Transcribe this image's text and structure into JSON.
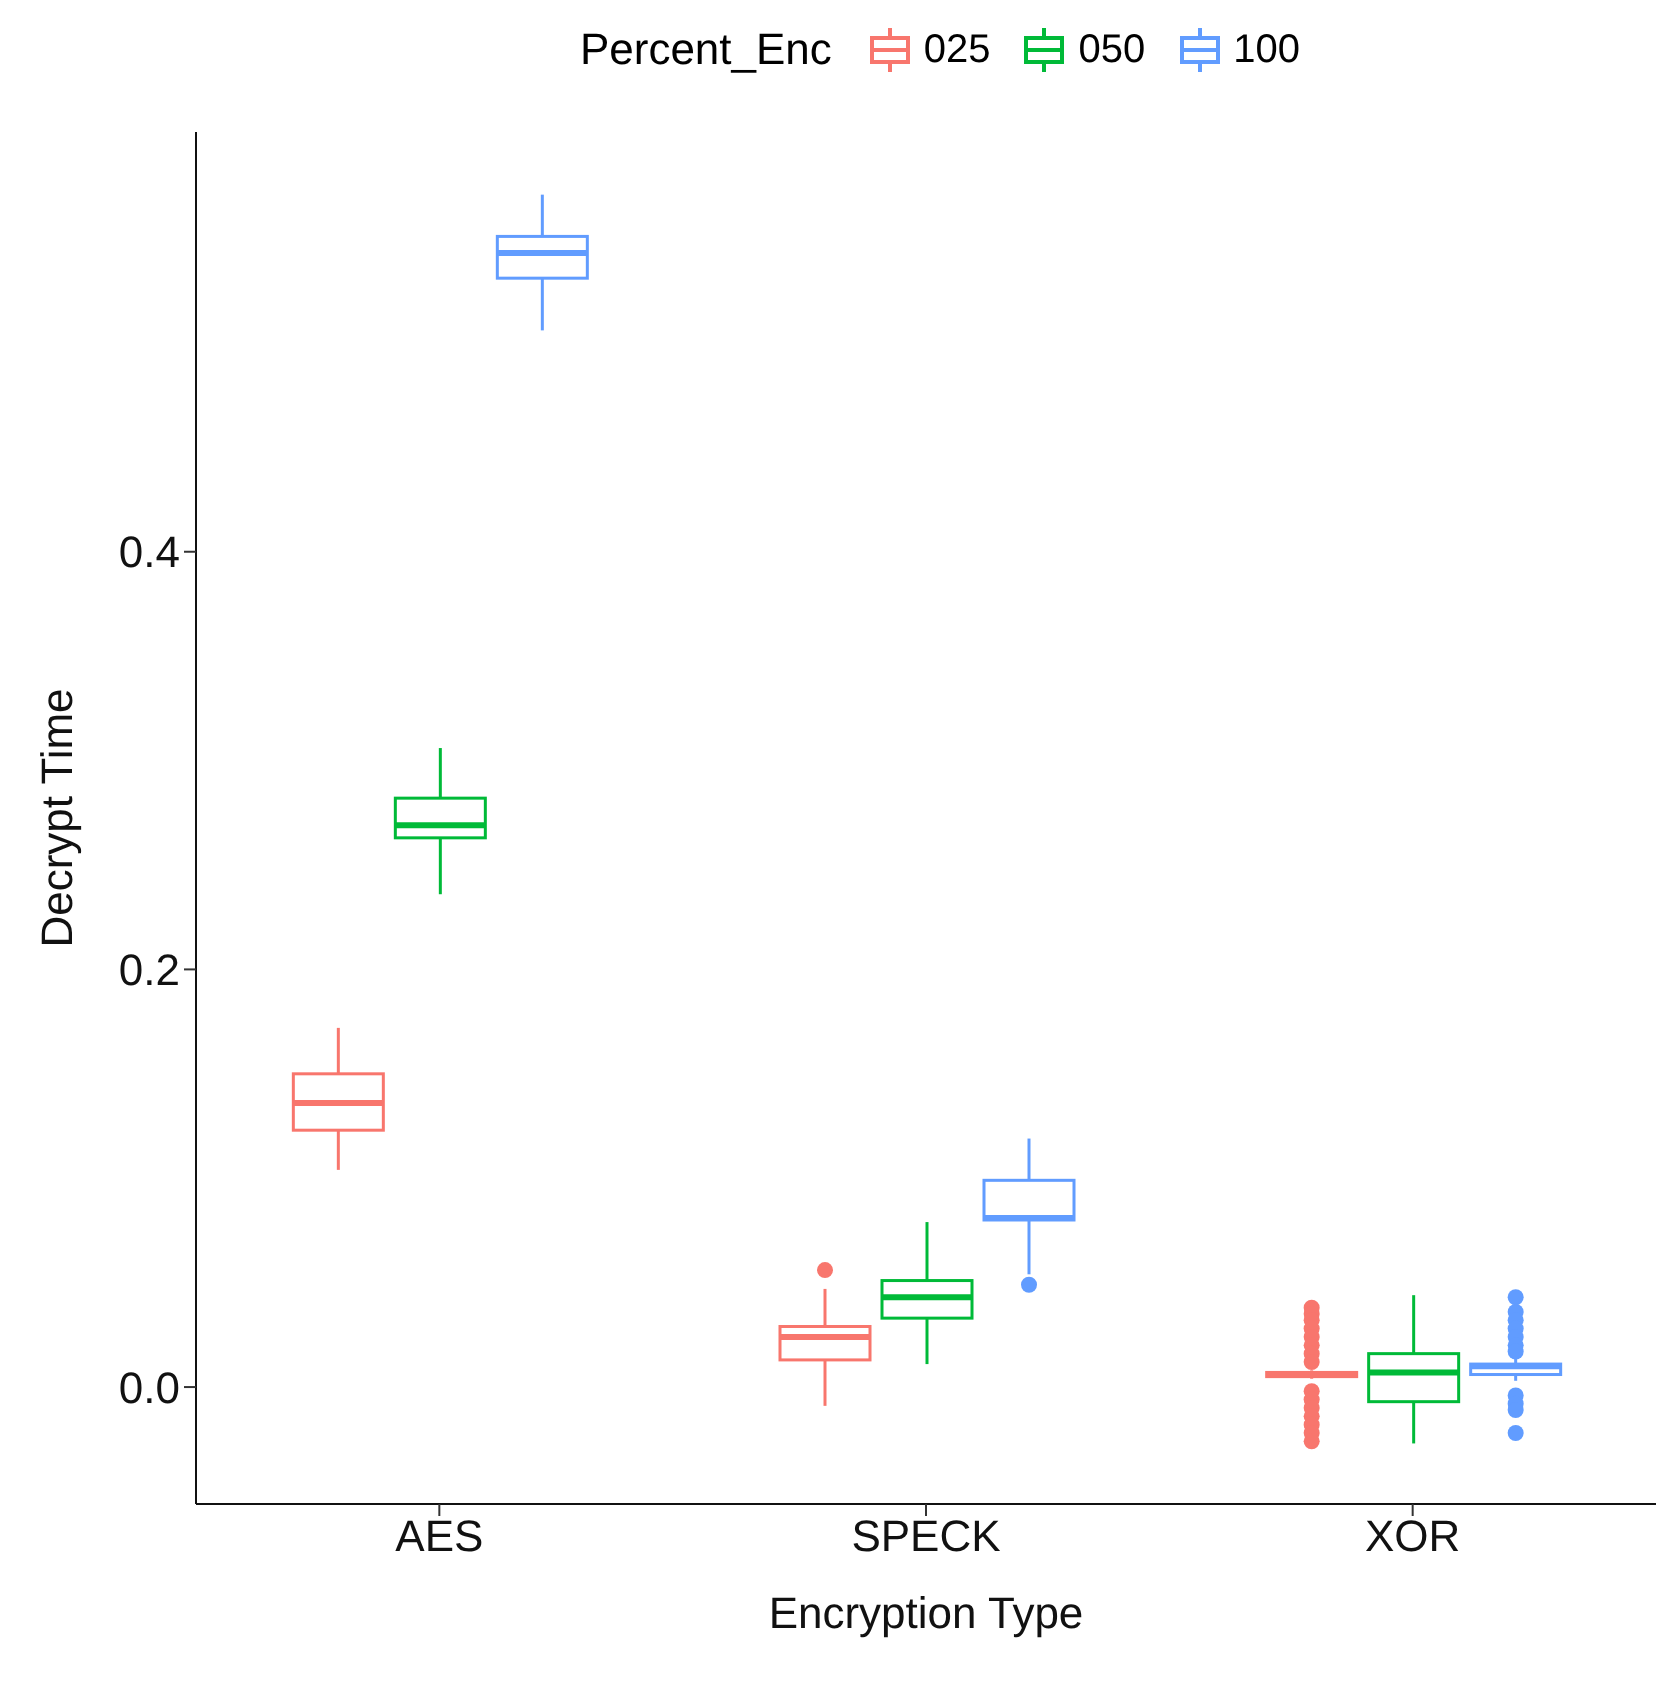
{
  "chart_data": {
    "type": "box",
    "xlabel": "Encryption Type",
    "ylabel": "Decrypt Time",
    "legend_title": "Percent_Enc",
    "legend": "top",
    "grid": false,
    "categories": [
      "AES",
      "SPECK",
      "XOR"
    ],
    "ylim": [
      -0.056,
      0.601
    ],
    "yticks": [
      {
        "value": 0,
        "label": "0.0"
      },
      {
        "value": 0.2,
        "label": "0.2"
      },
      {
        "value": 0.4,
        "label": "0.4"
      }
    ],
    "series": [
      {
        "name": "025",
        "color": "#f8766d",
        "boxes": [
          {
            "low": 0.104,
            "q1": 0.123,
            "median": 0.136,
            "q3": 0.15,
            "high": 0.172
          },
          {
            "low": -0.009,
            "q1": 0.013,
            "median": 0.024,
            "q3": 0.029,
            "high": 0.047,
            "outliers": [
              0.056
            ]
          },
          {
            "low": 0.004,
            "q1": 0.005,
            "median": 0.006,
            "q3": 0.007,
            "high": 0.008,
            "outliers": [
              0.038,
              0.035,
              0.032,
              0.028,
              0.024,
              0.02,
              0.016,
              0.012,
              -0.002,
              -0.006,
              -0.01,
              -0.014,
              -0.018,
              -0.022,
              -0.026
            ]
          }
        ]
      },
      {
        "name": "050",
        "color": "#00ba38",
        "boxes": [
          {
            "low": 0.236,
            "q1": 0.263,
            "median": 0.269,
            "q3": 0.282,
            "high": 0.306
          },
          {
            "low": 0.011,
            "q1": 0.033,
            "median": 0.043,
            "q3": 0.051,
            "high": 0.079
          },
          {
            "low": -0.027,
            "q1": -0.007,
            "median": 0.007,
            "q3": 0.016,
            "high": 0.044
          }
        ]
      },
      {
        "name": "100",
        "color": "#619cff",
        "boxes": [
          {
            "low": 0.506,
            "q1": 0.531,
            "median": 0.543,
            "q3": 0.551,
            "high": 0.571
          },
          {
            "low": 0.054,
            "q1": 0.08,
            "median": 0.081,
            "q3": 0.099,
            "high": 0.119,
            "outliers": [
              0.049
            ]
          },
          {
            "low": 0.003,
            "q1": 0.006,
            "median": 0.01,
            "q3": 0.011,
            "high": 0.014,
            "outliers": [
              0.043,
              0.036,
              0.032,
              0.028,
              0.024,
              0.02,
              0.017,
              -0.004,
              -0.008,
              -0.011,
              -0.022
            ]
          }
        ]
      }
    ]
  }
}
